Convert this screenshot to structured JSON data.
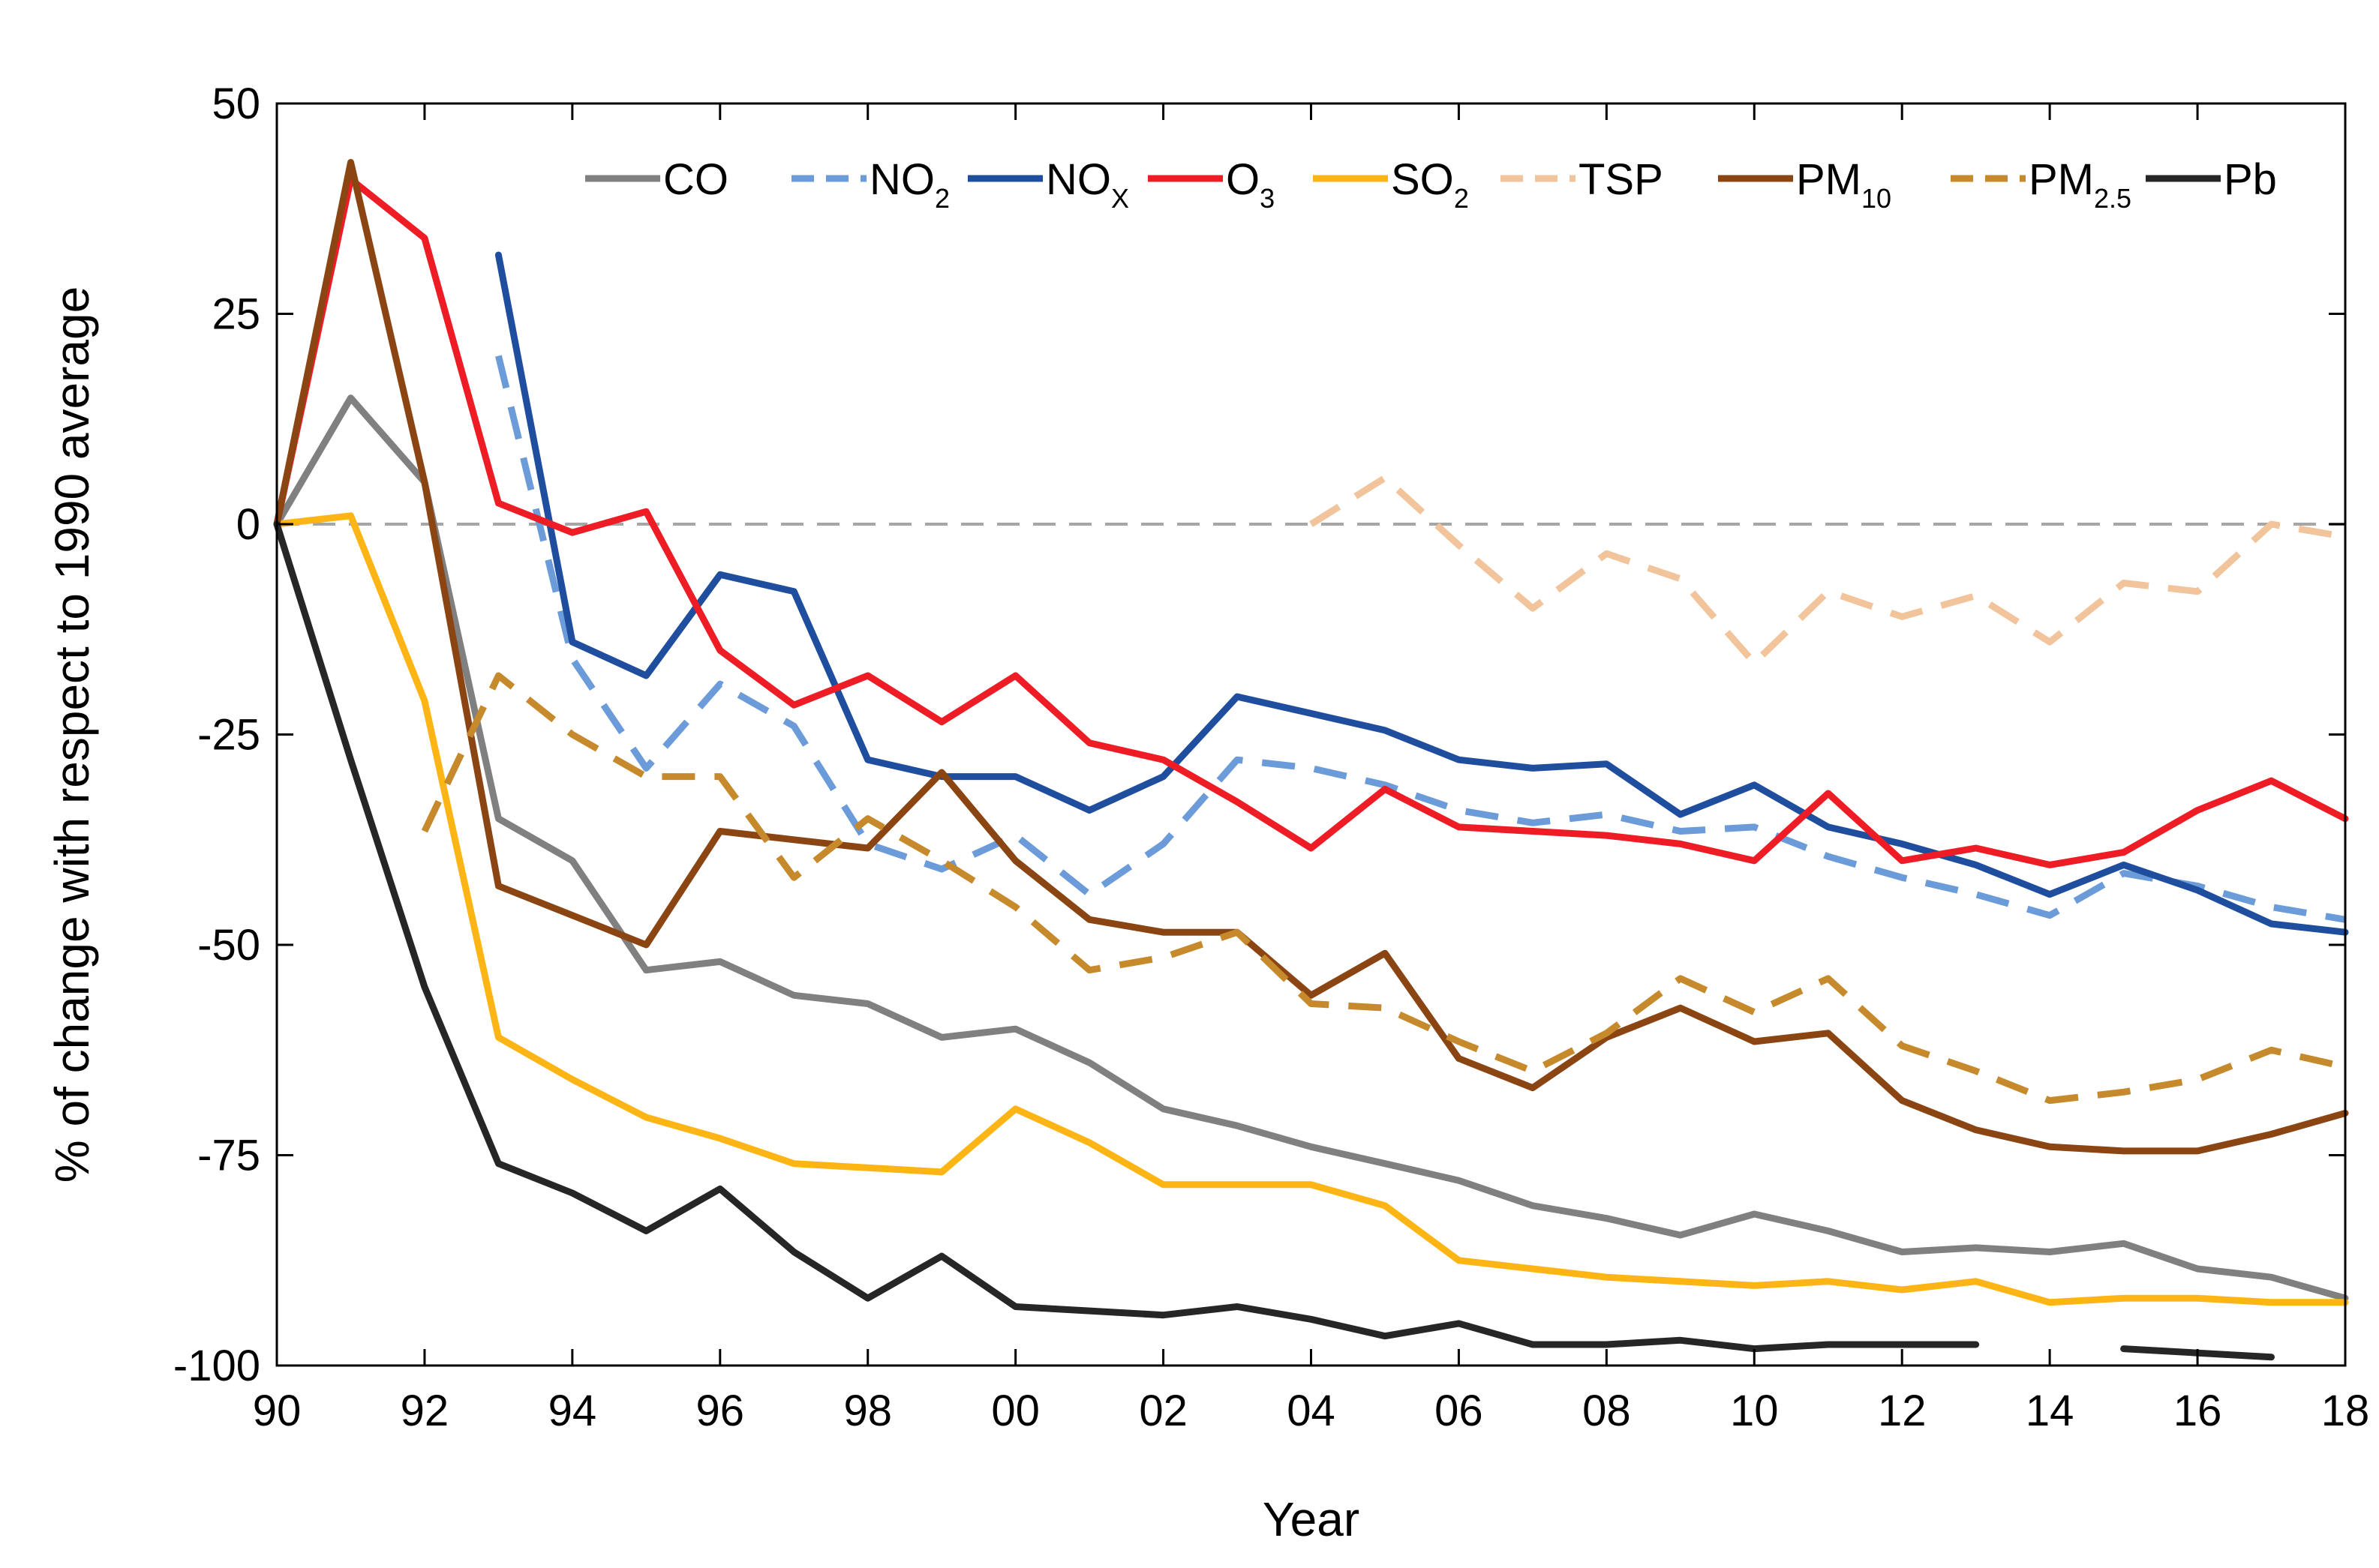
{
  "chart_data": {
    "type": "line",
    "title": "",
    "xlabel": "Year",
    "ylabel": "% of change with respect to 1990 average",
    "xlim": [
      1990,
      2018
    ],
    "ylim": [
      -100,
      50
    ],
    "x_ticks": [
      1990,
      1992,
      1994,
      1996,
      1998,
      2000,
      2002,
      2004,
      2006,
      2008,
      2010,
      2012,
      2014,
      2016,
      2018
    ],
    "x_tick_labels": [
      "90",
      "92",
      "94",
      "96",
      "98",
      "00",
      "02",
      "04",
      "06",
      "08",
      "10",
      "12",
      "14",
      "16",
      "18"
    ],
    "y_ticks": [
      50,
      25,
      0,
      -25,
      -50,
      -75,
      -100
    ],
    "y_tick_labels": [
      "50",
      "25",
      "0",
      "-25",
      "-50",
      "-75",
      "-100"
    ],
    "reference_line": {
      "y": 0,
      "style": "dashed",
      "color": "#a6a6a6"
    },
    "legend_position": "top",
    "series": [
      {
        "name": "CO",
        "legend_main": "CO",
        "legend_sub": "",
        "color": "#808080",
        "dashed": false,
        "x": [
          1990,
          1991,
          1992,
          1993,
          1994,
          1995,
          1996,
          1997,
          1998,
          1999,
          2000,
          2001,
          2002,
          2003,
          2004,
          2005,
          2006,
          2007,
          2008,
          2009,
          2010,
          2011,
          2012,
          2013,
          2014,
          2015,
          2016,
          2017,
          2018
        ],
        "values": [
          0,
          15,
          5,
          -35,
          -40,
          -53,
          -52,
          -56,
          -57,
          -61,
          -60,
          -64,
          -69.5,
          -71.5,
          -74,
          -76,
          -78,
          -81,
          -82.5,
          -84.5,
          -82,
          -84,
          -86.5,
          -86,
          -86.5,
          -85.5,
          -88.5,
          -89.5,
          -92
        ]
      },
      {
        "name": "NO2",
        "legend_main": "NO",
        "legend_sub": "2",
        "color": "#6b9bd8",
        "dashed": true,
        "x": [
          1993,
          1994,
          1995,
          1996,
          1997,
          1998,
          1999,
          2000,
          2001,
          2002,
          2003,
          2004,
          2005,
          2006,
          2007,
          2008,
          2009,
          2010,
          2011,
          2012,
          2013,
          2014,
          2015,
          2016,
          2017,
          2018
        ],
        "values": [
          20,
          -16,
          -29,
          -19,
          -24,
          -38,
          -41,
          -37,
          -44,
          -38,
          -28,
          -29,
          -31,
          -34,
          -35.5,
          -34.5,
          -36.5,
          -36,
          -39.5,
          -42,
          -44,
          -46.5,
          -41.5,
          -43,
          -45.5,
          -47
        ]
      },
      {
        "name": "NOX",
        "legend_main": "NO",
        "legend_sub": "X",
        "color": "#1f4e9e",
        "dashed": false,
        "x": [
          1993,
          1994,
          1995,
          1996,
          1997,
          1998,
          1999,
          2000,
          2001,
          2002,
          2003,
          2004,
          2005,
          2006,
          2007,
          2008,
          2009,
          2010,
          2011,
          2012,
          2013,
          2014,
          2015,
          2016,
          2017,
          2018
        ],
        "values": [
          32,
          -14,
          -18,
          -6,
          -8,
          -28,
          -30,
          -30,
          -34,
          -30,
          -20.5,
          -22.5,
          -24.5,
          -28,
          -29,
          -28.5,
          -34.5,
          -31,
          -36,
          -38,
          -40.5,
          -44,
          -40.5,
          -43.5,
          -47.5,
          -48.5
        ]
      },
      {
        "name": "O3",
        "legend_main": "O",
        "legend_sub": "3",
        "color": "#ee1c24",
        "dashed": false,
        "x": [
          1990,
          1991,
          1992,
          1993,
          1994,
          1995,
          1996,
          1997,
          1998,
          1999,
          2000,
          2001,
          2002,
          2003,
          2004,
          2005,
          2006,
          2007,
          2008,
          2009,
          2010,
          2011,
          2012,
          2013,
          2014,
          2015,
          2016,
          2017,
          2018
        ],
        "values": [
          0,
          41,
          34,
          2.5,
          -1,
          1.5,
          -15,
          -21.5,
          -18,
          -23.5,
          -18,
          -26,
          -28,
          -33,
          -38.5,
          -31.5,
          -36,
          -36.5,
          -37,
          -38,
          -40,
          -32,
          -40,
          -38.5,
          -40.5,
          -39,
          -34,
          -30.5,
          -35
        ]
      },
      {
        "name": "SO2",
        "legend_main": "SO",
        "legend_sub": "2",
        "color": "#fdb515",
        "dashed": false,
        "x": [
          1990,
          1991,
          1992,
          1993,
          1994,
          1995,
          1996,
          1997,
          1998,
          1999,
          2000,
          2001,
          2002,
          2003,
          2004,
          2005,
          2006,
          2007,
          2008,
          2009,
          2010,
          2011,
          2012,
          2013,
          2014,
          2015,
          2016,
          2017,
          2018
        ],
        "values": [
          0,
          1,
          -21,
          -61,
          -66,
          -70.5,
          -73,
          -76,
          -76.5,
          -77,
          -69.5,
          -73.5,
          -78.5,
          -78.5,
          -78.5,
          -81,
          -87.5,
          -88.5,
          -89.5,
          -90,
          -90.5,
          -90,
          -91,
          -90,
          -92.5,
          -92,
          -92,
          -92.5,
          -92.5
        ]
      },
      {
        "name": "TSP",
        "legend_main": "TSP",
        "legend_sub": "",
        "color": "#f2c49b",
        "dashed": true,
        "x": [
          2004,
          2005,
          2006,
          2007,
          2008,
          2009,
          2010,
          2011,
          2012,
          2013,
          2014,
          2015,
          2016,
          2017,
          2018
        ],
        "values": [
          0,
          5.5,
          -2.5,
          -10,
          -3.5,
          -6.5,
          -16.5,
          -8,
          -11,
          -8.5,
          -14,
          -7,
          -8,
          0,
          -1.5
        ]
      },
      {
        "name": "PM10",
        "legend_main": "PM",
        "legend_sub": "10",
        "color": "#8b4513",
        "dashed": false,
        "x": [
          1990,
          1991,
          1992,
          1993,
          1994,
          1995,
          1996,
          1997,
          1998,
          1999,
          2000,
          2001,
          2002,
          2003,
          2004,
          2005,
          2006,
          2007,
          2008,
          2009,
          2010,
          2011,
          2012,
          2013,
          2014,
          2015,
          2016,
          2017,
          2018
        ],
        "values": [
          0,
          43,
          5,
          -43,
          -46.5,
          -50,
          -36.5,
          -37.5,
          -38.5,
          -29.5,
          -40,
          -47,
          -48.5,
          -48.5,
          -56,
          -51,
          -63.5,
          -67,
          -61,
          -57.5,
          -61.5,
          -60.5,
          -68.5,
          -72,
          -74,
          -74.5,
          -74.5,
          -72.5,
          -70
        ]
      },
      {
        "name": "PM2.5",
        "legend_main": "PM",
        "legend_sub": "2.5",
        "color": "#c68a2c",
        "dashed": true,
        "x": [
          1992,
          1993,
          1994,
          1995,
          1996,
          1997,
          1998,
          1999,
          2000,
          2001,
          2002,
          2003,
          2004,
          2005,
          2006,
          2007,
          2008,
          2009,
          2010,
          2011,
          2012,
          2013,
          2014,
          2015,
          2016,
          2017,
          2018
        ],
        "values": [
          -36.5,
          -18,
          -25,
          -30,
          -30,
          -42,
          -35,
          -40,
          -45.5,
          -53,
          -51.5,
          -48.5,
          -57,
          -57.5,
          -61.5,
          -65,
          -60.5,
          -54,
          -58,
          -54,
          -62,
          -65,
          -68.5,
          -67.5,
          -66,
          -62.5,
          -64.5
        ]
      },
      {
        "name": "Pb",
        "legend_main": "Pb",
        "legend_sub": "",
        "color": "#262626",
        "dashed": false,
        "x": [
          1990,
          1991,
          1992,
          1993,
          1994,
          1995,
          1996,
          1997,
          1998,
          1999,
          2000,
          2001,
          2002,
          2003,
          2004,
          2005,
          2006,
          2007,
          2008,
          2009,
          2010,
          2011,
          2012,
          2013,
          null,
          2015,
          2016,
          2017
        ],
        "values": [
          0,
          -28,
          -55,
          -76,
          -79.5,
          -84,
          -79,
          -86.5,
          -92,
          -87,
          -93,
          -93.5,
          -94,
          -93,
          -94.5,
          -96.5,
          -95,
          -97.5,
          -97.5,
          -97,
          -98,
          -97.5,
          -97.5,
          -97.5,
          null,
          -98,
          -98.5,
          -99
        ]
      }
    ]
  }
}
